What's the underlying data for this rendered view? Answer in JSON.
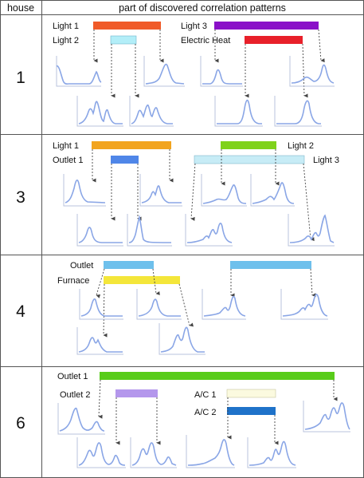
{
  "header": {
    "house": "house",
    "patterns": "part of discovered correlation patterns"
  },
  "rows": [
    {
      "house": "1",
      "labels": [
        "Light 1",
        "Light 2",
        "Light 3",
        "Electric Heat"
      ],
      "bar_colors": [
        "#f05a28",
        "#b3eef8",
        "#8a10c8",
        "#e8202a"
      ]
    },
    {
      "house": "3",
      "labels": [
        "Light 1",
        "Outlet 1",
        "Light 2",
        "Light 3"
      ],
      "bar_colors": [
        "#f2a41e",
        "#4f86e8",
        "#7fd21b",
        "#c7ecf6"
      ]
    },
    {
      "house": "4",
      "labels": [
        "Outlet",
        "Furnace"
      ],
      "bar_colors": [
        "#6ec0ec",
        "#f4e63a",
        "#6ec0ec"
      ]
    },
    {
      "house": "6",
      "labels": [
        "Outlet 1",
        "Outlet 2",
        "A/C 1",
        "A/C 2"
      ],
      "bar_colors": [
        "#58cc1a",
        "#b497ec",
        "#fbfadf",
        "#1f72c9"
      ]
    }
  ],
  "colors": {
    "grid_line": "#555555",
    "curve": "#8aa6e6",
    "axis": "#b8c3dc",
    "arrow": "#444444"
  }
}
